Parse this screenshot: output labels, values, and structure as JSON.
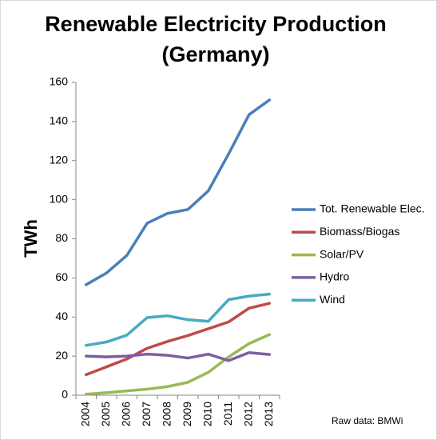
{
  "chart_data": {
    "type": "line",
    "title": [
      "Renewable Electricity Production",
      "(Germany)"
    ],
    "y_label": "TWh",
    "note": "Raw data: BMWi",
    "categories": [
      "2004",
      "2005",
      "2006",
      "2007",
      "2008",
      "2009",
      "2010",
      "2011",
      "2012",
      "2013"
    ],
    "series": [
      {
        "name": "Tot. Renewable Elec.",
        "color": "#4a7ebb",
        "values": [
          56.5,
          62.5,
          71.5,
          88,
          93,
          95,
          104.5,
          123.5,
          143.5,
          151
        ]
      },
      {
        "name": "Biomass/Biogas",
        "color": "#be4b48",
        "values": [
          10.5,
          14.5,
          18.5,
          24,
          27.5,
          30.5,
          34,
          37.5,
          44.5,
          47
        ]
      },
      {
        "name": "Solar/PV",
        "color": "#98b954",
        "values": [
          0.5,
          1.3,
          2.2,
          3.1,
          4.4,
          6.6,
          11.7,
          19.6,
          26.4,
          31
        ]
      },
      {
        "name": "Hydro",
        "color": "#7d5fa0",
        "values": [
          20,
          19.6,
          20,
          21,
          20.4,
          19,
          21,
          17.7,
          21.8,
          20.8
        ]
      },
      {
        "name": "Wind",
        "color": "#46aac5",
        "values": [
          25.5,
          27.2,
          30.7,
          39.7,
          40.6,
          38.6,
          37.8,
          48.9,
          50.7,
          51.7
        ]
      }
    ],
    "ylim": [
      0,
      160
    ],
    "yticks": [
      0,
      20,
      40,
      60,
      80,
      100,
      120,
      140,
      160
    ],
    "grid": false,
    "legend": "right"
  }
}
